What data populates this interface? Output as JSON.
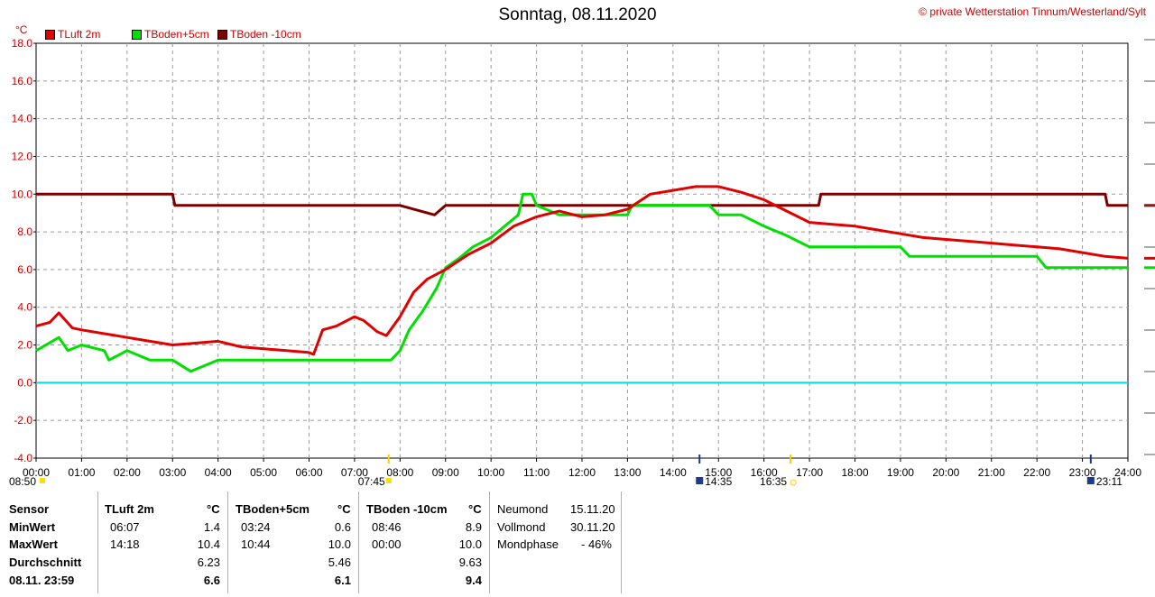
{
  "header": {
    "title": "Sonntag, 08.11.2020",
    "credit": "© private Wetterstation Tinnum/Westerland/Sylt",
    "unit": "°C"
  },
  "chart_data": {
    "type": "line",
    "ylim": [
      -4,
      18
    ],
    "yticks": [
      "18.0",
      "16.0",
      "14.0",
      "12.0",
      "10.0",
      "8.0",
      "6.0",
      "4.0",
      "2.0",
      "0.0",
      "-2.0",
      "-4.0"
    ],
    "xlim": [
      0,
      24
    ],
    "xticks": [
      "00:00",
      "01:00",
      "02:00",
      "03:00",
      "04:00",
      "05:00",
      "06:00",
      "07:00",
      "08:00",
      "09:00",
      "10:00",
      "11:00",
      "12:00",
      "13:00",
      "14:00",
      "15:00",
      "16:00",
      "17:00",
      "18:00",
      "19:00",
      "20:00",
      "21:00",
      "22:00",
      "23:00",
      "24:00"
    ],
    "grid": true,
    "legend_position": "top-left",
    "series": [
      {
        "name": "TLuft 2m",
        "color": "#e00000",
        "x": [
          0,
          0.3,
          0.5,
          0.8,
          1,
          1.5,
          2,
          2.5,
          3,
          3.5,
          4,
          4.5,
          5,
          5.5,
          6,
          6.1,
          6.3,
          6.6,
          7,
          7.2,
          7.5,
          7.7,
          8,
          8.3,
          8.6,
          9,
          9.5,
          10,
          10.5,
          11,
          11.5,
          12,
          12.5,
          13,
          13.5,
          14,
          14.5,
          15,
          15.5,
          16,
          16.5,
          17,
          17.5,
          18,
          18.5,
          19,
          19.5,
          20,
          20.5,
          21,
          21.5,
          22,
          22.5,
          23,
          23.5,
          24
        ],
        "y": [
          3.0,
          3.2,
          3.7,
          2.9,
          2.8,
          2.6,
          2.4,
          2.2,
          2.0,
          2.1,
          2.2,
          1.9,
          1.8,
          1.7,
          1.6,
          1.5,
          2.8,
          3.0,
          3.5,
          3.3,
          2.7,
          2.5,
          3.5,
          4.8,
          5.5,
          6.0,
          6.8,
          7.4,
          8.3,
          8.8,
          9.1,
          8.8,
          8.9,
          9.2,
          10.0,
          10.2,
          10.4,
          10.4,
          10.1,
          9.7,
          9.1,
          8.5,
          8.4,
          8.3,
          8.1,
          7.9,
          7.7,
          7.6,
          7.5,
          7.4,
          7.3,
          7.2,
          7.1,
          6.9,
          6.7,
          6.6
        ]
      },
      {
        "name": "TBoden+5cm",
        "color": "#00e000",
        "x": [
          0,
          0.5,
          0.7,
          1,
          1.5,
          1.6,
          2,
          2.5,
          3,
          3.4,
          4,
          4.5,
          5,
          5.5,
          6,
          6.5,
          7,
          7.5,
          7.8,
          8,
          8.2,
          8.5,
          8.8,
          9,
          9.3,
          9.6,
          10,
          10.3,
          10.6,
          10.7,
          10.9,
          11,
          11.5,
          12,
          12.5,
          13,
          13.1,
          14,
          14.5,
          14.8,
          15,
          15.5,
          16,
          16.5,
          17,
          18,
          19,
          19.2,
          20,
          21,
          22,
          22.2,
          23,
          24
        ],
        "y": [
          1.7,
          2.4,
          1.7,
          2.0,
          1.7,
          1.2,
          1.7,
          1.2,
          1.2,
          0.6,
          1.2,
          1.2,
          1.2,
          1.2,
          1.2,
          1.2,
          1.2,
          1.2,
          1.2,
          1.7,
          2.8,
          3.8,
          5.0,
          6.1,
          6.6,
          7.2,
          7.7,
          8.3,
          8.9,
          10.0,
          10.0,
          9.4,
          8.9,
          8.9,
          8.9,
          8.9,
          9.4,
          9.4,
          9.4,
          9.4,
          8.9,
          8.9,
          8.3,
          7.8,
          7.2,
          7.2,
          7.2,
          6.7,
          6.7,
          6.7,
          6.7,
          6.1,
          6.1,
          6.1
        ]
      },
      {
        "name": "TBoden -10cm",
        "color": "#7a0000",
        "x": [
          0,
          1,
          2,
          3,
          3.05,
          4,
          5,
          6,
          7,
          8,
          8.76,
          9,
          10,
          11,
          12,
          13,
          14,
          15,
          16,
          17,
          17.2,
          17.25,
          18,
          19,
          20,
          21,
          22,
          23,
          23.5,
          23.55,
          24
        ],
        "y": [
          10.0,
          10.0,
          10.0,
          10.0,
          9.4,
          9.4,
          9.4,
          9.4,
          9.4,
          9.4,
          8.9,
          9.4,
          9.4,
          9.4,
          9.4,
          9.4,
          9.4,
          9.4,
          9.4,
          9.4,
          9.4,
          10.0,
          10.0,
          10.0,
          10.0,
          10.0,
          10.0,
          10.0,
          10.0,
          9.4,
          9.4
        ]
      }
    ],
    "reference_lines": [
      {
        "name": "0.0",
        "y": 0,
        "color": "#00dddd"
      }
    ],
    "markers": {
      "sunrise": "07:45",
      "sunset": "16:35",
      "moonrise": "14:35",
      "moonset": "23:11",
      "left_time": "08:50"
    }
  },
  "table": {
    "row_labels": [
      "Sensor",
      "MinWert",
      "MaxWert",
      "Durchschnitt",
      "08.11. 23:59"
    ],
    "columns": [
      {
        "name": "TLuft 2m",
        "unit": "°C",
        "min_time": "06:07",
        "min": "1.4",
        "max_time": "14:18",
        "max": "10.4",
        "avg": "6.23",
        "current": "6.6"
      },
      {
        "name": "TBoden+5cm",
        "unit": "°C",
        "min_time": "03:24",
        "min": "0.6",
        "max_time": "10:44",
        "max": "10.0",
        "avg": "5.46",
        "current": "6.1"
      },
      {
        "name": "TBoden -10cm",
        "unit": "°C",
        "min_time": "08:46",
        "min": "8.9",
        "max_time": "00:00",
        "max": "10.0",
        "avg": "9.63",
        "current": "9.4"
      }
    ],
    "moon": [
      {
        "label": "Neumond",
        "value": "15.11.20"
      },
      {
        "label": "Vollmond",
        "value": "30.11.20"
      },
      {
        "label": "Mondphase",
        "value": "- 46%"
      }
    ]
  }
}
